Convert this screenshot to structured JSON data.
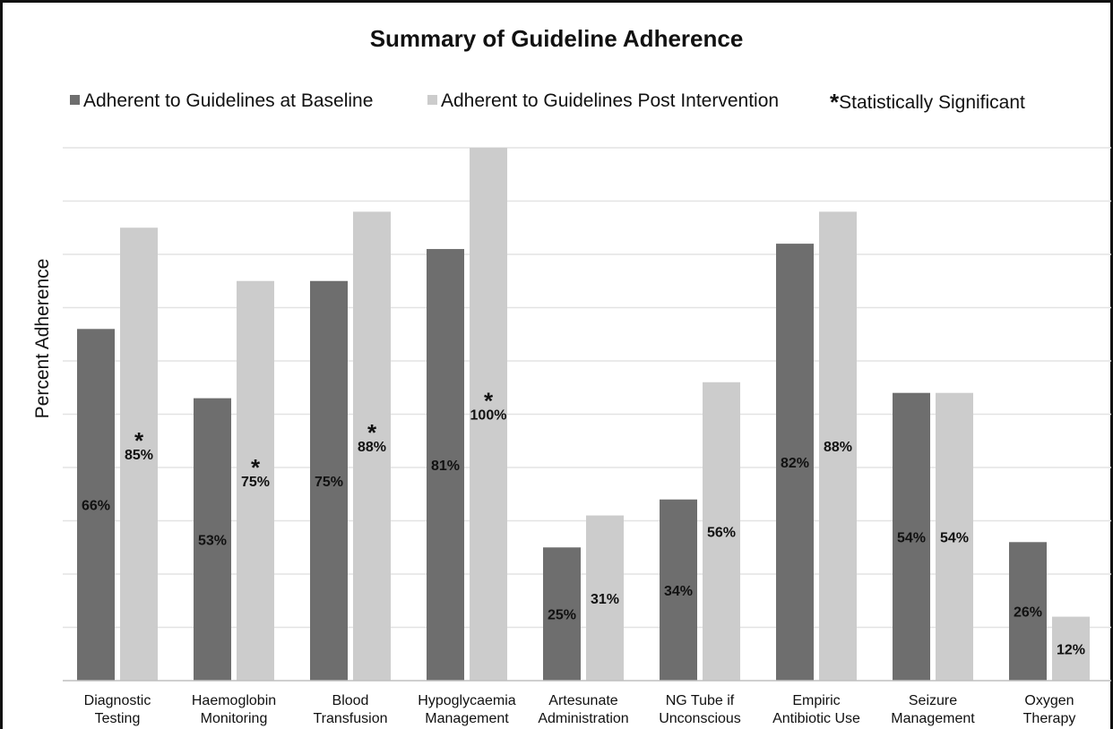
{
  "chart_data": {
    "type": "bar",
    "title": "Summary of Guideline Adherence",
    "ylabel": "Percent Adherence",
    "xlabel": "",
    "ylim": [
      0,
      100
    ],
    "grid": true,
    "legend_position": "top",
    "categories": [
      [
        "Diagnostic",
        "Testing"
      ],
      [
        "Haemoglobin",
        "Monitoring"
      ],
      [
        "Blood",
        "Transfusion"
      ],
      [
        "Hypoglycaemia",
        "Management"
      ],
      [
        "Artesunate",
        "Administration"
      ],
      [
        "NG Tube if",
        "Unconscious"
      ],
      [
        "Empiric",
        "Antibiotic Use"
      ],
      [
        "Seizure",
        "Management"
      ],
      [
        "Oxygen",
        "Therapy"
      ]
    ],
    "series": [
      {
        "name": "Adherent to Guidelines at Baseline",
        "color": "#6e6e6e",
        "values": [
          66,
          53,
          75,
          81,
          25,
          34,
          82,
          54,
          26
        ],
        "labels": [
          "66%",
          "53%",
          "75%",
          "81%",
          "25%",
          "34%",
          "82%",
          "54%",
          "26%"
        ]
      },
      {
        "name": "Adherent to Guidelines Post Intervention",
        "color": "#cccccc",
        "values": [
          85,
          75,
          88,
          100,
          31,
          56,
          88,
          54,
          12
        ],
        "labels": [
          "85%",
          "75%",
          "88%",
          "100%",
          "31%",
          "56%",
          "88%",
          "54%",
          "12%"
        ]
      }
    ],
    "significance": {
      "symbol": "*",
      "legend_text": "Statistically Significant",
      "flags": [
        true,
        true,
        true,
        true,
        false,
        false,
        false,
        false,
        false
      ]
    }
  }
}
